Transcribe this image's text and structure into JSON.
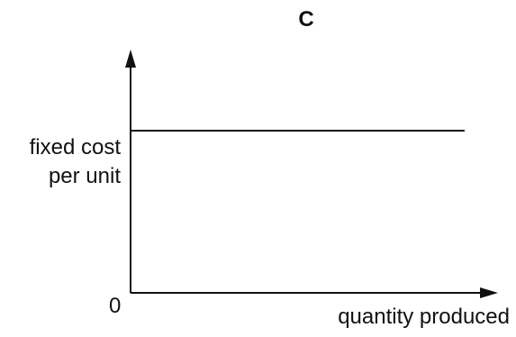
{
  "chart_data": {
    "type": "line",
    "title": "C",
    "ylabel_lines": [
      "fixed cost",
      "per unit"
    ],
    "xlabel": "quantity produced",
    "origin_label": "0",
    "series": [
      {
        "x": [
          0,
          1
        ],
        "y": [
          1,
          1
        ]
      }
    ],
    "xlim": [
      0,
      1.1
    ],
    "ylim": [
      0,
      1.5
    ],
    "grid": false,
    "axis_arrows": true,
    "colors": {
      "line": "#111111",
      "axes": "#111111"
    }
  }
}
